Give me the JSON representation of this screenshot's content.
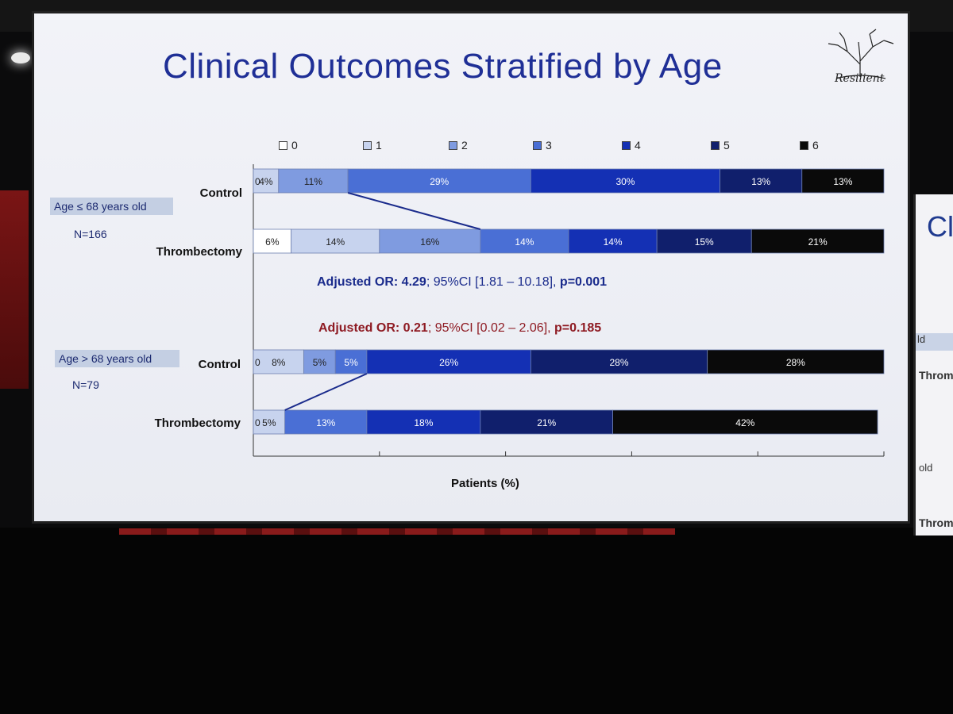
{
  "slide": {
    "title": "Clinical Outcomes Stratified by Age",
    "logo_text": "Resilient"
  },
  "colors": {
    "title": "#1f2f96",
    "or_blue": "#1a2b8c",
    "or_red": "#8e1a22"
  },
  "side_screen": {
    "t1": "Cl",
    "t2": "ld",
    "t3": "Throm",
    "t4": "old",
    "t5": "Throm"
  },
  "groups": [
    {
      "label": "Age ≤ 68 years old",
      "n": "N=166"
    },
    {
      "label": "Age > 68 years old",
      "n": "N=79"
    }
  ],
  "stats": [
    {
      "or_label": "Adjusted OR:",
      "or_value": "4.29",
      "ci": "; 95%CI [1.81 – 10.18], ",
      "p": "p=0.001"
    },
    {
      "or_label": "Adjusted OR:",
      "or_value": "0.21",
      "ci": "; 95%CI [0.02 – 2.06], ",
      "p": "p=0.185"
    }
  ],
  "chart_data": {
    "type": "bar",
    "stacked": true,
    "orientation": "horizontal",
    "xlabel": "Patients (%)",
    "xlim": [
      0,
      100
    ],
    "legend": [
      "0",
      "1",
      "2",
      "3",
      "4",
      "5",
      "6"
    ],
    "legend_position": "top",
    "series_colors": [
      "#ffffff",
      "#c7d3ee",
      "#7f9be0",
      "#4a6fd5",
      "#1430b4",
      "#101f6c",
      "#0a0a0a"
    ],
    "rows": [
      {
        "label": "Control",
        "group": "Age ≤ 68 years old",
        "values": [
          4,
          11,
          29,
          30,
          13,
          13
        ],
        "categories": [
          "1",
          "2",
          "3",
          "4",
          "5",
          "6"
        ],
        "shown_labels": [
          "4%",
          "11%",
          "29%",
          "30%",
          "13%",
          "13%"
        ],
        "zero_marker": "0"
      },
      {
        "label": "Thrombectomy",
        "group": "Age ≤ 68 years old",
        "values": [
          6,
          14,
          16,
          14,
          14,
          15,
          21
        ],
        "categories": [
          "0",
          "1",
          "2",
          "3",
          "4",
          "5",
          "6"
        ],
        "shown_labels": [
          "6%",
          "14%",
          "16%",
          "14%",
          "14%",
          "15%",
          "21%"
        ],
        "zero_marker": ""
      },
      {
        "label": "Control",
        "group": "Age > 68 years old",
        "values": [
          8,
          5,
          5,
          26,
          28,
          28
        ],
        "categories": [
          "1",
          "2",
          "3",
          "4",
          "5",
          "6"
        ],
        "shown_labels": [
          "8%",
          "5%",
          "5%",
          "26%",
          "28%",
          "28%"
        ],
        "zero_marker": "0"
      },
      {
        "label": "Thrombectomy",
        "group": "Age > 68 years old",
        "values": [
          5,
          0,
          13,
          18,
          21,
          42
        ],
        "categories": [
          "1",
          "2",
          "3",
          "4",
          "5",
          "6"
        ],
        "shown_labels": [
          "5%",
          "0",
          "13%",
          "18%",
          "21%",
          "42%"
        ],
        "zero_marker": "0"
      }
    ]
  }
}
